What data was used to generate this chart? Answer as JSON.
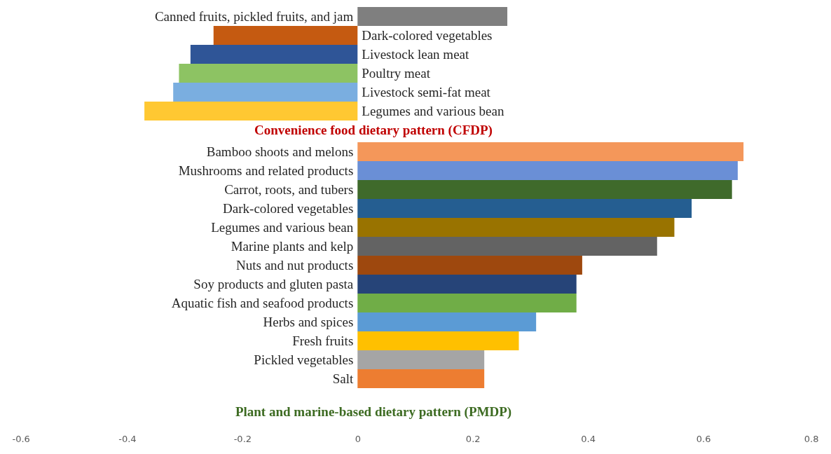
{
  "chart_data": [
    {
      "type": "bar",
      "orientation": "horizontal",
      "title": "Convenience food dietary pattern (CFDP)",
      "categories": [
        "Canned fruits, pickled fruits, and jam",
        "Dark-colored vegetables",
        "Livestock lean meat",
        "Poultry meat",
        "Livestock semi-fat meat",
        "Legumes and various bean"
      ],
      "values": [
        0.26,
        -0.25,
        -0.29,
        -0.31,
        -0.32,
        -0.37
      ],
      "colors": [
        "#7f7f7f",
        "#c55a11",
        "#2f5597",
        "#8dc363",
        "#7aaee0",
        "#ffc832"
      ],
      "xlim": [
        -0.6,
        0.8
      ],
      "xticks": [
        -0.6,
        -0.4,
        -0.2,
        0,
        0.2,
        0.4,
        0.6,
        0.8
      ],
      "tick_labels": false
    },
    {
      "type": "bar",
      "orientation": "horizontal",
      "title": "Plant and marine-based dietary pattern (PMDP)",
      "categories": [
        "Bamboo shoots and melons",
        "Mushrooms and related products",
        "Carrot, roots, and tubers",
        "Dark-colored vegetables",
        "Legumes and various bean",
        "Marine plants and kelp",
        "Nuts and nut products",
        "Soy products and gluten pasta",
        "Aquatic fish and seafood products",
        "Herbs and spices",
        "Fresh fruits",
        "Pickled vegetables",
        "Salt"
      ],
      "values": [
        0.67,
        0.66,
        0.65,
        0.58,
        0.55,
        0.52,
        0.39,
        0.38,
        0.38,
        0.31,
        0.28,
        0.22,
        0.22
      ],
      "colors": [
        "#f4975a",
        "#6a8fd6",
        "#3f6a2b",
        "#255e91",
        "#997300",
        "#636363",
        "#9e480e",
        "#264478",
        "#70ad47",
        "#5b9bd5",
        "#ffc000",
        "#a5a5a5",
        "#ed7d31"
      ],
      "xlim": [
        -0.6,
        0.8
      ],
      "xticks": [
        -0.6,
        -0.4,
        -0.2,
        0,
        0.2,
        0.4,
        0.6,
        0.8
      ],
      "grid": false
    }
  ]
}
